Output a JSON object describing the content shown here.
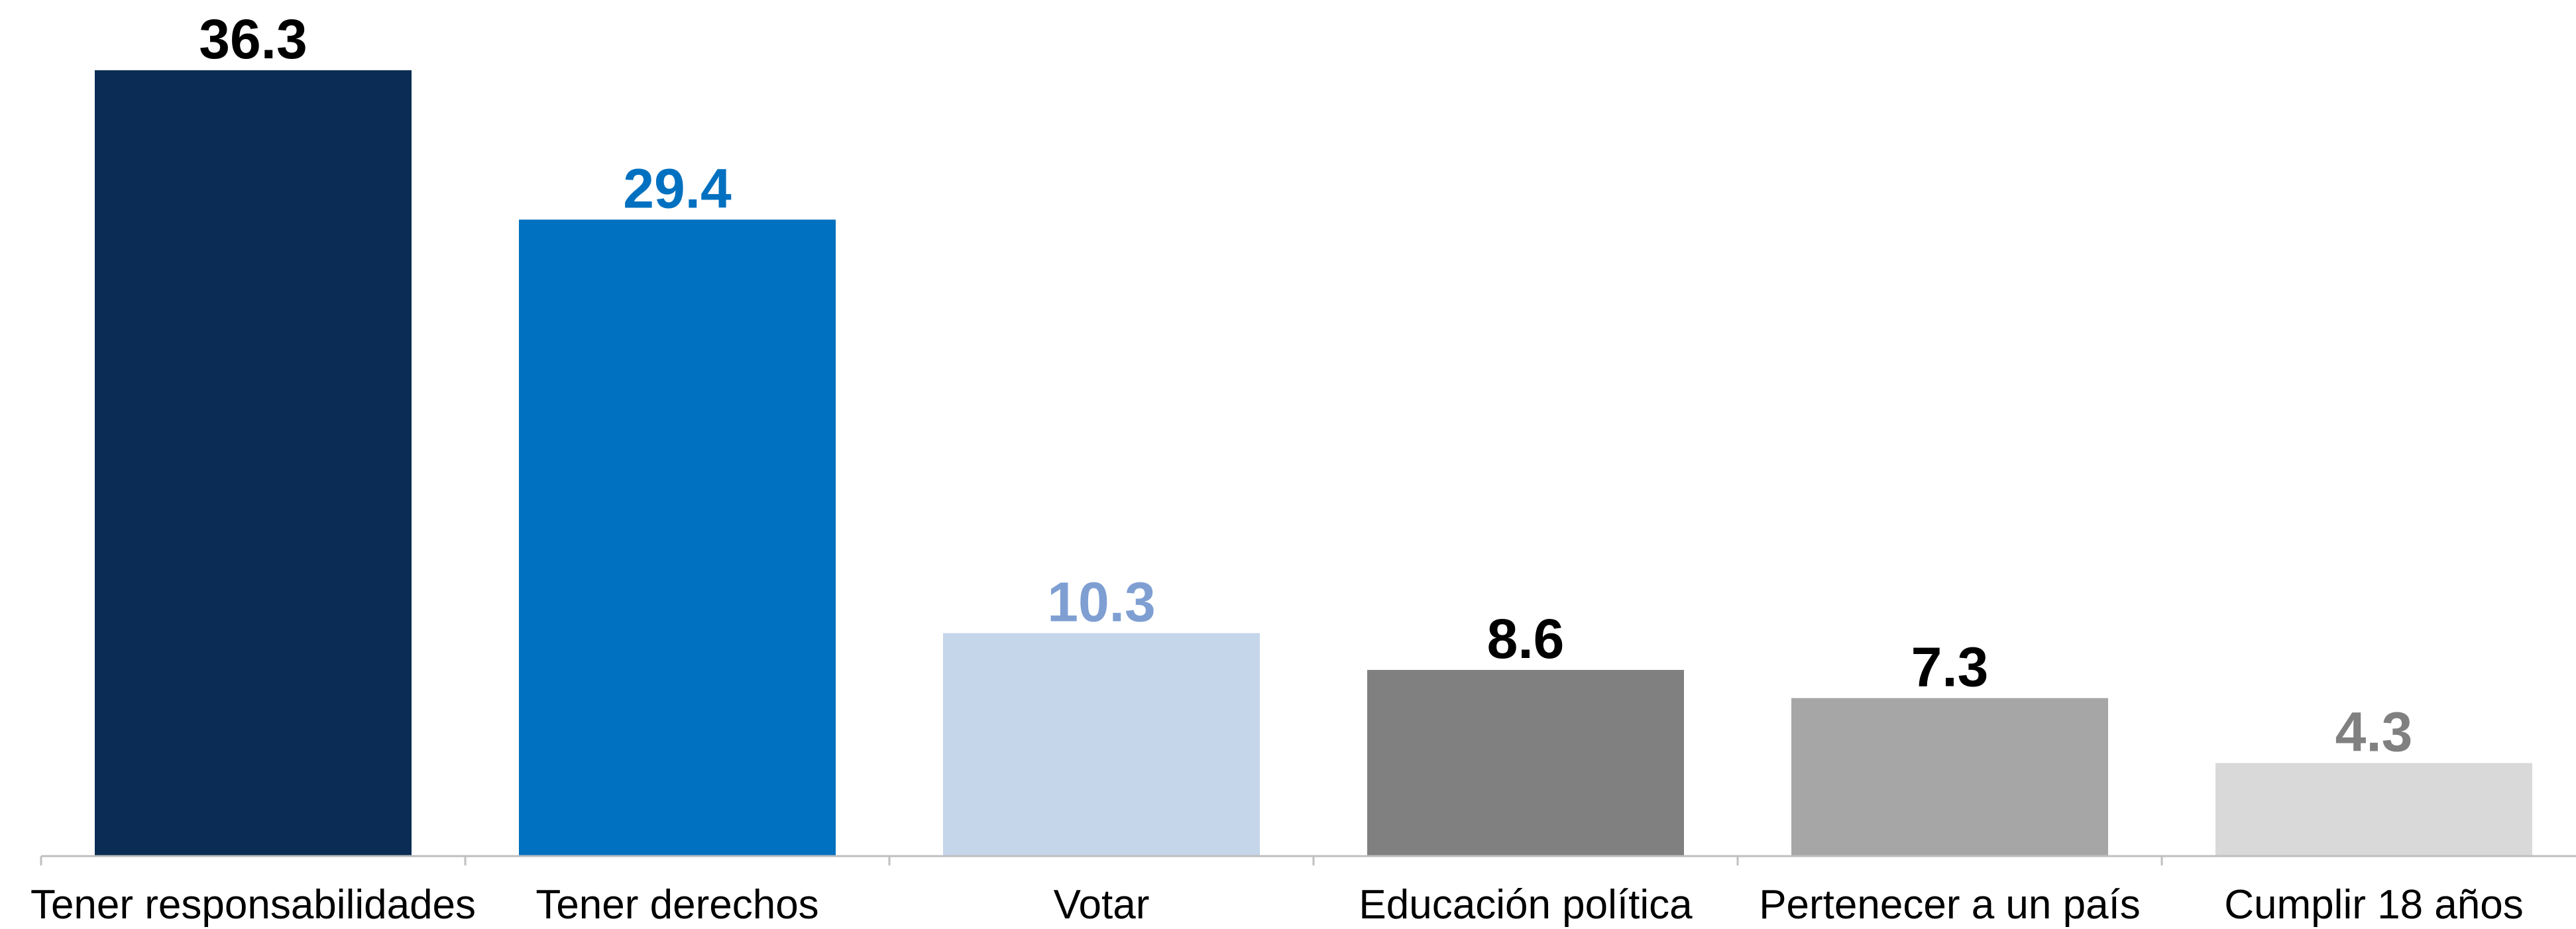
{
  "chart_data": {
    "type": "bar",
    "categories": [
      "Tener responsabilidades",
      "Tener derechos",
      "Votar",
      "Educación política",
      "Pertenecer a un país",
      "Cumplir 18 años"
    ],
    "values": [
      36.3,
      29.4,
      10.3,
      8.6,
      7.3,
      4.3
    ],
    "value_labels": [
      "36.3",
      "29.4",
      "10.3",
      "8.6",
      "7.3",
      "4.3"
    ],
    "bar_colors": [
      "#0b2d55",
      "#0070c0",
      "#c5d5ea",
      "#808080",
      "#a6a6a6",
      "#d9d9d9"
    ],
    "label_colors": [
      "#000000",
      "#0070c0",
      "#7f9fd3",
      "#000000",
      "#000000",
      "#808080"
    ],
    "title": "",
    "xlabel": "",
    "ylabel": "",
    "ylim": [
      0,
      38
    ],
    "grid": false,
    "legend": "none"
  }
}
